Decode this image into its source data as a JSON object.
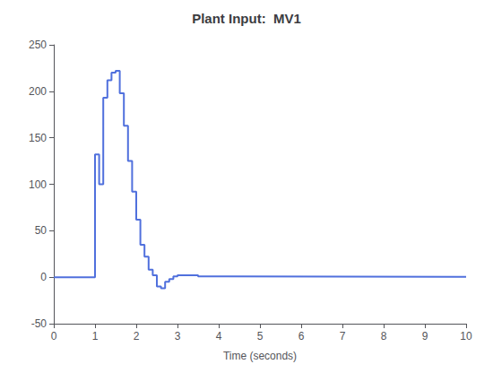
{
  "chart_data": {
    "type": "line",
    "title": "Plant Input:  MV1",
    "xlabel": "Time (seconds)",
    "x": [
      0.0,
      1.0,
      1.0,
      1.1,
      1.1,
      1.2,
      1.2,
      1.3,
      1.3,
      1.4,
      1.4,
      1.5,
      1.5,
      1.6,
      1.6,
      1.7,
      1.7,
      1.8,
      1.8,
      1.9,
      1.9,
      2.0,
      2.0,
      2.1,
      2.1,
      2.2,
      2.2,
      2.3,
      2.3,
      2.4,
      2.4,
      2.5,
      2.5,
      2.6,
      2.6,
      2.7,
      2.7,
      2.8,
      2.8,
      2.9,
      2.9,
      3.0,
      3.0,
      3.5,
      3.5,
      4.0,
      4.0,
      10.0
    ],
    "values": [
      0.0,
      0.0,
      132.0,
      132.0,
      100.0,
      100.0,
      193.0,
      193.0,
      212.0,
      212.0,
      220.0,
      220.0,
      222.0,
      222.0,
      198.0,
      198.0,
      163.0,
      163.0,
      125.0,
      125.0,
      92.0,
      92.0,
      62.0,
      62.0,
      35.0,
      35.0,
      22.0,
      22.0,
      8.0,
      8.0,
      2.0,
      2.0,
      -10.0,
      -10.0,
      -12.0,
      -12.0,
      -5.0,
      -5.0,
      -2.0,
      -2.0,
      1.0,
      1.0,
      2.0,
      2.0,
      1.0,
      1.0,
      0.5,
      0.5
    ],
    "xlim": [
      0,
      10
    ],
    "ylim": [
      -50,
      250
    ],
    "xticks": [
      0,
      1,
      2,
      3,
      4,
      5,
      6,
      7,
      8,
      9,
      10
    ],
    "yticks": [
      -50,
      0,
      50,
      100,
      150,
      200,
      250
    ],
    "grid": false
  }
}
